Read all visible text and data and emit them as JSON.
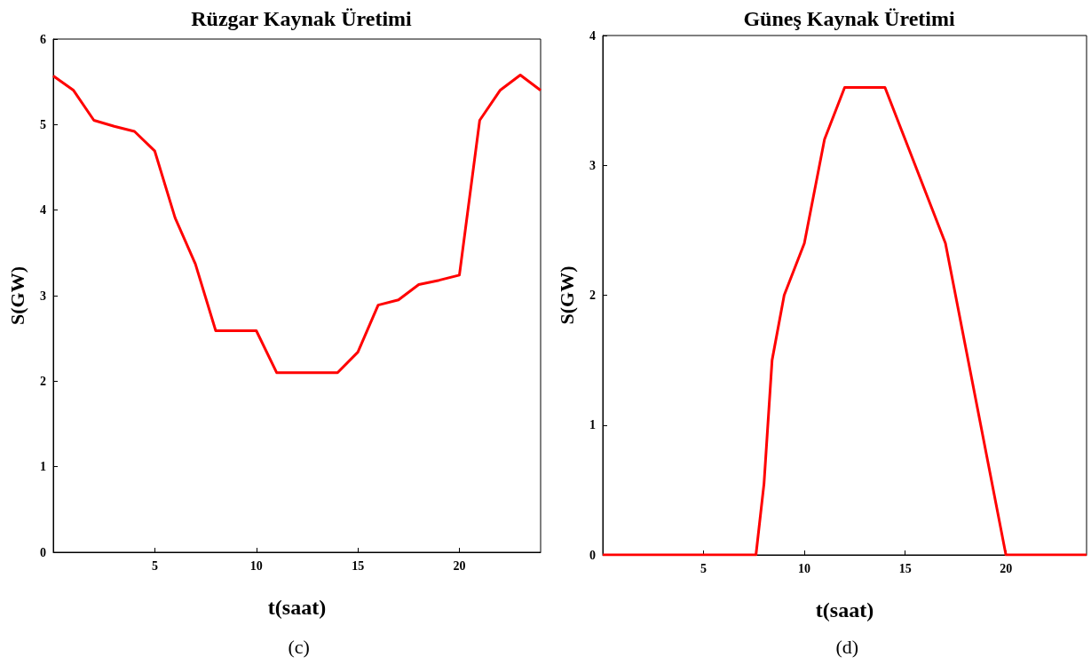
{
  "chart_data": [
    {
      "type": "line",
      "title": "Rüzgar Kaynak Üretimi",
      "xlabel": "t(saat)",
      "ylabel": "S(GW)",
      "annotations": [
        "(c)"
      ],
      "x": [
        0,
        1,
        2,
        3,
        4,
        5,
        6,
        7,
        8,
        9,
        10,
        11,
        12,
        13,
        14,
        15,
        16,
        17,
        18,
        19,
        20,
        21,
        22,
        23,
        24
      ],
      "series": [
        {
          "color": "#ff0000",
          "values": [
            5.57,
            5.4,
            5.05,
            4.98,
            4.92,
            4.69,
            3.91,
            3.37,
            2.59,
            2.59,
            2.59,
            2.1,
            2.1,
            2.1,
            2.1,
            2.34,
            2.89,
            2.95,
            3.13,
            3.18,
            3.24,
            5.05,
            5.4,
            5.58,
            5.4
          ]
        }
      ],
      "xlim": [
        0,
        24
      ],
      "xticks": [
        5,
        10,
        15,
        20
      ],
      "ylim": [
        0,
        6
      ],
      "yticks": [
        0,
        1,
        2,
        3,
        4,
        5,
        6
      ],
      "grid": false,
      "marker": "none",
      "line_style": "solid"
    },
    {
      "type": "line",
      "title": "Güneş Kaynak Üretimi",
      "xlabel": "t(saat)",
      "ylabel": "S(GW)",
      "annotations": [
        "(d)"
      ],
      "x": [
        0,
        7.6,
        8,
        8.4,
        9,
        10,
        11,
        12,
        14,
        17,
        20,
        24
      ],
      "series": [
        {
          "color": "#ff0000",
          "values": [
            0,
            0,
            0.55,
            1.5,
            2,
            2.4,
            3.2,
            3.6,
            3.6,
            2.4,
            0,
            0
          ]
        }
      ],
      "xlim": [
        0,
        24
      ],
      "xticks": [
        5,
        10,
        15,
        20
      ],
      "ylim": [
        0,
        4
      ],
      "yticks": [
        0,
        1,
        2,
        3,
        4
      ],
      "grid": false,
      "marker": "none",
      "line_style": "solid"
    }
  ]
}
